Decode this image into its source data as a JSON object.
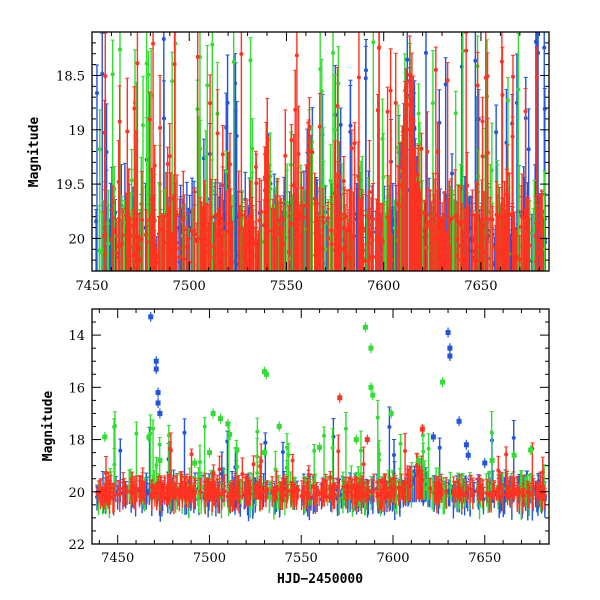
{
  "figure": {
    "xlabel": "HJD−2450000"
  },
  "chart_data": [
    {
      "type": "scatter",
      "panel": "top",
      "title": "",
      "xlabel": "",
      "ylabel": "Magnitude",
      "xlim": [
        7450,
        7685
      ],
      "ylim": [
        20.3,
        18.1
      ],
      "y_inverted": true,
      "x_ticks": [
        7450,
        7500,
        7550,
        7600,
        7650
      ],
      "y_ticks": [
        18.5,
        19,
        19.5,
        20
      ],
      "y_tick_labels": [
        "18.5",
        "19",
        "19.5",
        "20"
      ],
      "grid": false,
      "legend": "none",
      "series": [
        {
          "color": "#2255dd",
          "seed": 11,
          "n": 330,
          "base": 20.0,
          "spread": 0.5,
          "outlier_frac": 0.12,
          "outlier_min": 18.15,
          "err": 0.35
        },
        {
          "color": "#33dd33",
          "seed": 23,
          "n": 240,
          "base": 20.0,
          "spread": 0.5,
          "outlier_frac": 0.3,
          "outlier_min": 18.15,
          "err": 0.4
        },
        {
          "color": "#ff3322",
          "seed": 37,
          "n": 420,
          "base": 20.0,
          "spread": 0.45,
          "outlier_frac": 0.15,
          "outlier_min": 18.2,
          "err": 0.35
        }
      ],
      "features": [
        {
          "x": 7613,
          "depth": 1.6,
          "width": 4
        },
        {
          "x": 7562,
          "depth": 1.1,
          "width": 2
        },
        {
          "x": 7540,
          "depth": 0.8,
          "width": 2
        }
      ]
    },
    {
      "type": "scatter",
      "panel": "bottom",
      "title": "",
      "xlabel": "HJD−2450000",
      "ylabel": "Magnitude",
      "xlim": [
        7436,
        7685
      ],
      "ylim": [
        22,
        13
      ],
      "y_inverted": true,
      "x_ticks": [
        7450,
        7500,
        7550,
        7600,
        7650
      ],
      "y_ticks": [
        14,
        16,
        18,
        20,
        22
      ],
      "y_tick_labels": [
        "14",
        "16",
        "18",
        "20",
        "22"
      ],
      "grid": false,
      "legend": "none",
      "series": [
        {
          "color": "#2255dd",
          "seed": 41,
          "n": 300,
          "base": 20.1,
          "spread": 0.45,
          "outlier_frac": 0.05,
          "outlier_min": 17.5,
          "err": 0.6
        },
        {
          "color": "#33dd33",
          "seed": 53,
          "n": 240,
          "base": 20.0,
          "spread": 0.6,
          "outlier_frac": 0.15,
          "outlier_min": 17.0,
          "err": 0.6
        },
        {
          "color": "#ff3322",
          "seed": 67,
          "n": 380,
          "base": 20.0,
          "spread": 0.4,
          "outlier_frac": 0.05,
          "outlier_min": 18.2,
          "err": 0.5
        }
      ],
      "highlights": [
        {
          "color": "#2255dd",
          "points": [
            [
              7468,
              13.3
            ],
            [
              7471,
              15.0
            ],
            [
              7471,
              15.3
            ],
            [
              7472,
              16.2
            ],
            [
              7472,
              16.6
            ],
            [
              7473,
              17.0
            ],
            [
              7630,
              13.9
            ],
            [
              7631,
              14.5
            ],
            [
              7631,
              14.8
            ],
            [
              7636,
              17.3
            ],
            [
              7640,
              18.2
            ],
            [
              7641,
              18.6
            ],
            [
              7650,
              18.9
            ],
            [
              7622,
              17.9
            ]
          ]
        },
        {
          "color": "#33dd33",
          "points": [
            [
              7443,
              17.9
            ],
            [
              7467,
              17.9
            ],
            [
              7473,
              18.8
            ],
            [
              7492,
              18.9
            ],
            [
              7500,
              18.5
            ],
            [
              7506,
              17.2
            ],
            [
              7510,
              17.4
            ],
            [
              7511,
              17.8
            ],
            [
              7515,
              18.4
            ],
            [
              7530,
              15.4
            ],
            [
              7531,
              15.5
            ],
            [
              7585,
              13.7
            ],
            [
              7588,
              14.5
            ],
            [
              7588,
              16.0
            ],
            [
              7589,
              16.3
            ],
            [
              7580,
              18.0
            ],
            [
              7599,
              17.0
            ],
            [
              7614,
              18.8
            ],
            [
              7627,
              15.8
            ],
            [
              7654,
              18.8
            ],
            [
              7666,
              18.6
            ],
            [
              7675,
              18.4
            ],
            [
              7538,
              17.5
            ],
            [
              7530,
              18.5
            ],
            [
              7502,
              17.0
            ],
            [
              7560,
              18.3
            ]
          ]
        },
        {
          "color": "#ff3322",
          "points": [
            [
              7571,
              16.4
            ],
            [
              7586,
              18.0
            ],
            [
              7616,
              17.6
            ]
          ]
        }
      ],
      "features": [
        {
          "x": 7613,
          "depth": 0.9,
          "width": 4
        }
      ]
    }
  ]
}
